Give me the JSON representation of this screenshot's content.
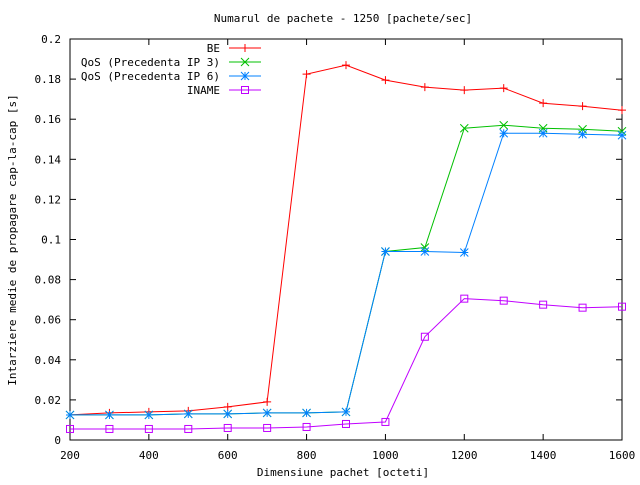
{
  "chart_data": {
    "type": "line",
    "title": "Numarul de pachete - 1250 [pachete/sec]",
    "xlabel": "Dimensiune pachet [octeti]",
    "ylabel": "Intarziere medie de propagare cap-la-cap [s]",
    "xlim": [
      200,
      1600
    ],
    "ylim": [
      0,
      0.2
    ],
    "xticks": [
      200,
      400,
      600,
      800,
      1000,
      1200,
      1400,
      1600
    ],
    "yticks": [
      0,
      0.02,
      0.04,
      0.06,
      0.08,
      0.1,
      0.12,
      0.14,
      0.16,
      0.18,
      0.2
    ],
    "xtick_labels": [
      "200",
      "400",
      "600",
      "800",
      "1000",
      "1200",
      "1400",
      "1600"
    ],
    "ytick_labels": [
      "0",
      "0.02",
      "0.04",
      "0.06",
      "0.08",
      "0.1",
      "0.12",
      "0.14",
      "0.16",
      "0.18",
      "0.2"
    ],
    "grid": false,
    "legend_position": "top-left",
    "x": [
      200,
      300,
      400,
      500,
      600,
      700,
      800,
      900,
      1000,
      1100,
      1200,
      1300,
      1400,
      1500,
      1600
    ],
    "series": [
      {
        "name": "BE",
        "color": "#ff0000",
        "marker": "plus",
        "values": [
          0.0125,
          0.0135,
          0.014,
          0.0145,
          0.0165,
          0.019,
          0.1825,
          0.187,
          0.1795,
          0.176,
          0.1745,
          0.1755,
          0.168,
          0.1665,
          0.1645
        ]
      },
      {
        "name": "QoS (Precedenta IP 3)",
        "color": "#00c000",
        "marker": "cross",
        "values": [
          0.0125,
          0.0125,
          0.0125,
          0.013,
          0.013,
          0.0135,
          0.0135,
          0.014,
          0.094,
          0.096,
          0.1555,
          0.157,
          0.1555,
          0.155,
          0.154
        ]
      },
      {
        "name": "QoS (Precedenta IP 6)",
        "color": "#0080ff",
        "marker": "star",
        "values": [
          0.0125,
          0.0125,
          0.0125,
          0.013,
          0.013,
          0.0135,
          0.0135,
          0.014,
          0.094,
          0.094,
          0.0935,
          0.153,
          0.153,
          0.1525,
          0.152
        ]
      },
      {
        "name": "INAME",
        "color": "#c000ff",
        "marker": "square",
        "values": [
          0.0055,
          0.0055,
          0.0055,
          0.0055,
          0.006,
          0.006,
          0.0065,
          0.008,
          0.009,
          0.0515,
          0.0705,
          0.0695,
          0.0675,
          0.066,
          0.0665
        ]
      }
    ]
  }
}
